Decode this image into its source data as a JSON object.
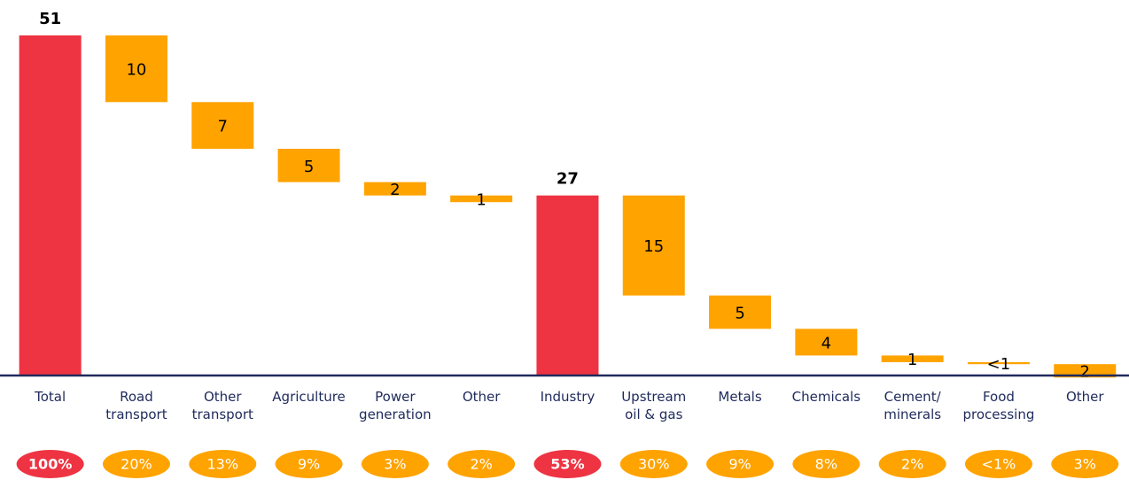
{
  "chart_data": {
    "type": "waterfall",
    "categories": [
      "Total",
      "Road\ntransport",
      "Other\ntransport",
      "Agriculture",
      "Power\ngeneration",
      "Other",
      "Industry",
      "Upstream\noil & gas",
      "Metals",
      "Chemicals",
      "Cement/\nminerals",
      "Food\nprocessing",
      "Other"
    ],
    "measure": [
      "total",
      "relative",
      "relative",
      "relative",
      "relative",
      "relative",
      "total",
      "relative",
      "relative",
      "relative",
      "relative",
      "relative",
      "relative"
    ],
    "values": [
      51,
      10,
      7,
      5,
      2,
      1,
      27,
      15,
      5,
      4,
      1,
      0.3,
      2
    ],
    "value_labels": [
      "51",
      "10",
      "7",
      "5",
      "2",
      "1",
      "27",
      "15",
      "5",
      "4",
      "1",
      "<1",
      "2"
    ],
    "shares": [
      100,
      20,
      13,
      9,
      3,
      2,
      53,
      30,
      9,
      8,
      2,
      0.6,
      3
    ],
    "share_labels": [
      "100%",
      "20%",
      "13%",
      "9%",
      "3%",
      "2%",
      "53%",
      "30%",
      "9%",
      "8%",
      "2%",
      "<1%",
      "3%"
    ],
    "total_color": "#ee3342",
    "color": "#ffa300",
    "ylim": [
      0,
      51
    ]
  }
}
